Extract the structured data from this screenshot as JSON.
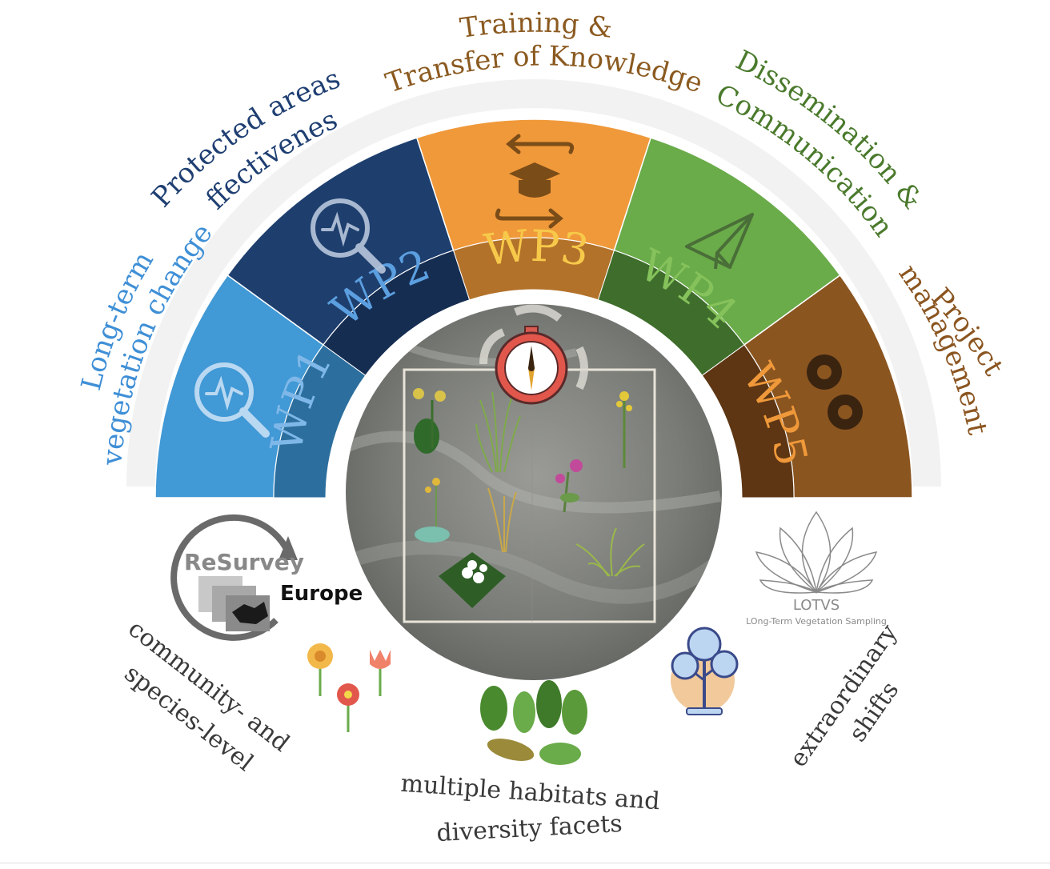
{
  "colors": {
    "wp1": "#4199d6",
    "wp1_inner": "#2c6f9e",
    "wp2": "#1e3f6e",
    "wp2_inner": "#162d52",
    "wp3": "#f0993a",
    "wp3_inner": "#b3722a",
    "wp4": "#6aab4a",
    "wp4_inner": "#3f6e2c",
    "wp5": "#8b5520",
    "wp5_inner": "#5e3613",
    "wp1_text": "#3f8fd6",
    "wp2_text": "#1f3f72",
    "wp3_text": "#8b5a20",
    "wp4_text": "#4a7a2c",
    "wp5_text": "#8b5520",
    "wp1_label": "#7fb8e8",
    "wp2_label": "#5b9fe0",
    "wp3_label": "#f7c94a",
    "wp4_label": "#86c25c",
    "wp5_label": "#f0993a",
    "backdrop": "#f2f2f2"
  },
  "work_packages": [
    {
      "id": "wp1",
      "label": "WP1",
      "title": "Long-term vegetation change",
      "icon": "magnifier-chart-icon"
    },
    {
      "id": "wp2",
      "label": "WP2",
      "title": "Protected areas effectiveness",
      "icon": "magnifier-chart-icon"
    },
    {
      "id": "wp3",
      "label": "WP3",
      "title": "Training & Transfer of Knowledge",
      "icon": "graduation-cap-cycle-icon"
    },
    {
      "id": "wp4",
      "label": "WP4",
      "title": "Dissemination & Communication",
      "icon": "paper-plane-icon"
    },
    {
      "id": "wp5",
      "label": "WP5",
      "title": "Project management",
      "icon": "gears-icon"
    }
  ],
  "arc_titles": {
    "wp1_line1": "Long-term",
    "wp1_line2": "vegetation change",
    "wp2_line1": "Protected areas",
    "wp2_line2": "effectiveness",
    "wp3_line1": "Training &",
    "wp3_line2": "Transfer of Knowledge",
    "wp4_line1": "Dissemination &",
    "wp4_line2": "Communication",
    "wp5_line1": "Project",
    "wp5_line2": "management"
  },
  "center": {
    "icon": "stopwatch-cycle-icon",
    "image": "vegetation-plot-photo"
  },
  "logos": {
    "resurvey_word": "ReSurvey",
    "resurvey_europe": "Europe",
    "lotvs_title": "LOTVS",
    "lotvs_subtitle": "LOng-Term Vegetation Sampling"
  },
  "bottom_labels": {
    "left_line1": "community- and",
    "left_line2": "species-level",
    "middle_line1": "multiple habitats and",
    "middle_line2": "diversity facets",
    "right_line1": "extraordinary",
    "right_line2": "shifts"
  },
  "bottom_icons": [
    "flowers-icon",
    "leaves-icon",
    "tree-icon"
  ]
}
